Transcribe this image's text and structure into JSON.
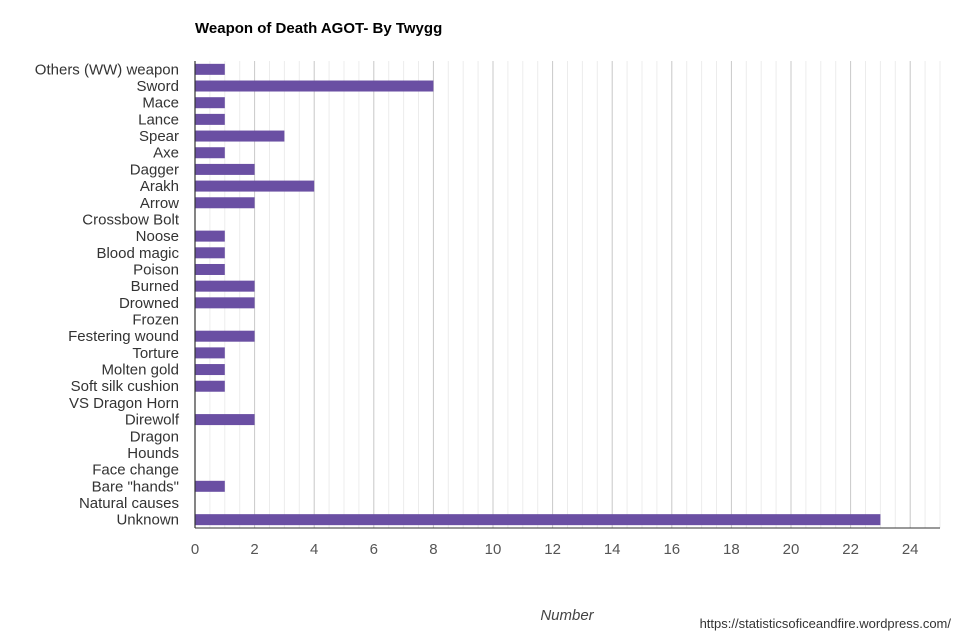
{
  "chart_data": {
    "type": "bar",
    "orientation": "horizontal",
    "title": "Weapon of Death AGOT- By Twygg",
    "xlabel": "Number",
    "ylabel": "",
    "source": "https://statisticsoficeandfire.wordpress.com/",
    "categories": [
      "Others (WW) weapon",
      "Sword",
      "Mace",
      "Lance",
      "Spear",
      "Axe",
      "Dagger",
      "Arakh",
      "Arrow",
      "Crossbow Bolt",
      "Noose",
      "Blood magic",
      "Poison",
      "Burned",
      "Drowned",
      "Frozen",
      "Festering wound",
      "Torture",
      "Molten gold",
      "Soft silk cushion",
      "VS Dragon Horn",
      "Direwolf",
      "Dragon",
      "Hounds",
      "Face change",
      "Bare \"hands\"",
      "Natural causes",
      "Unknown"
    ],
    "values": [
      1,
      8,
      1,
      1,
      3,
      1,
      2,
      4,
      2,
      0,
      1,
      1,
      1,
      2,
      2,
      0,
      2,
      1,
      1,
      1,
      0,
      2,
      0,
      0,
      0,
      1,
      0,
      23
    ],
    "xlim": [
      0,
      25
    ],
    "xticks": [
      "0",
      "2",
      "4",
      "6",
      "8",
      "10",
      "12",
      "14",
      "16",
      "18",
      "20",
      "22",
      "24"
    ],
    "minor_step": 0.5,
    "grid": true,
    "colors": {
      "bar": "#6a4fa3",
      "major_grid": "#c8c8c8",
      "minor_grid": "#ececec",
      "axis": "#333333"
    }
  }
}
